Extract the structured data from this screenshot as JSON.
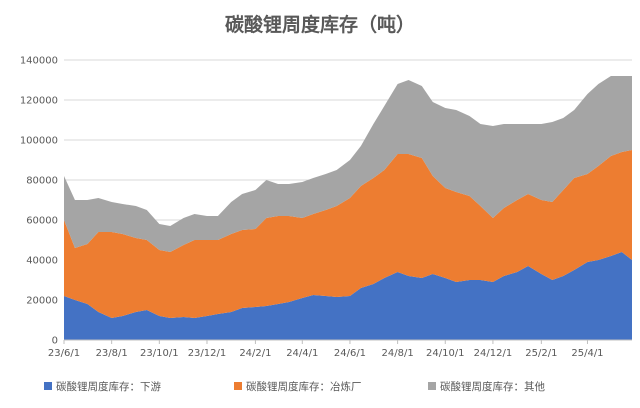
{
  "chart_data": {
    "type": "area",
    "stacked": true,
    "title": "碳酸锂周度库存（吨）",
    "xlabel": "",
    "ylabel": "",
    "ylim": [
      0,
      140000
    ],
    "yticks": [
      0,
      20000,
      40000,
      60000,
      80000,
      100000,
      120000,
      140000
    ],
    "ytick_labels": [
      "0",
      "20000",
      "40000",
      "60000",
      "80000",
      "100000",
      "120000",
      "140000"
    ],
    "xlim": [
      "2023-06-01",
      "2025-05-28"
    ],
    "xticks": [
      "2023-06-01",
      "2023-08-01",
      "2023-10-01",
      "2023-12-01",
      "2024-02-01",
      "2024-04-01",
      "2024-06-01",
      "2024-08-01",
      "2024-10-01",
      "2024-12-01",
      "2025-02-01",
      "2025-04-01"
    ],
    "xtick_labels": [
      "23/6/1",
      "23/8/1",
      "23/10/1",
      "23/12/1",
      "24/2/1",
      "24/4/1",
      "24/6/1",
      "24/8/1",
      "24/10/1",
      "24/12/1",
      "25/2/1",
      "25/4/1"
    ],
    "grid": true,
    "legend_position": "bottom",
    "x": [
      "2023-06-01",
      "2023-06-15",
      "2023-07-01",
      "2023-07-15",
      "2023-08-01",
      "2023-08-15",
      "2023-09-01",
      "2023-09-15",
      "2023-10-01",
      "2023-10-15",
      "2023-11-01",
      "2023-11-15",
      "2023-12-01",
      "2023-12-15",
      "2024-01-01",
      "2024-01-15",
      "2024-02-01",
      "2024-02-15",
      "2024-03-01",
      "2024-03-15",
      "2024-04-01",
      "2024-04-15",
      "2024-05-01",
      "2024-05-15",
      "2024-06-01",
      "2024-06-15",
      "2024-07-01",
      "2024-07-15",
      "2024-08-01",
      "2024-08-15",
      "2024-09-01",
      "2024-09-15",
      "2024-10-01",
      "2024-10-15",
      "2024-11-01",
      "2024-11-15",
      "2024-12-01",
      "2024-12-15",
      "2025-01-01",
      "2025-01-15",
      "2025-02-01",
      "2025-02-15",
      "2025-03-01",
      "2025-03-15",
      "2025-04-01",
      "2025-04-15",
      "2025-05-01",
      "2025-05-15",
      "2025-05-28"
    ],
    "series": [
      {
        "name": "碳酸锂周度库存：下游",
        "color": "#4472C4",
        "values": [
          22000,
          20000,
          18000,
          14000,
          11000,
          12000,
          14000,
          15000,
          12000,
          11000,
          11500,
          11000,
          12000,
          13000,
          14000,
          16000,
          16500,
          17000,
          18000,
          19000,
          21000,
          22500,
          22000,
          21500,
          22000,
          26000,
          28000,
          31000,
          34000,
          32000,
          31000,
          33000,
          31000,
          29000,
          30000,
          30000,
          29000,
          32000,
          34000,
          37000,
          33000,
          30000,
          32000,
          35000,
          39000,
          40000,
          42000,
          44000,
          40000
        ]
      },
      {
        "name": "碳酸锂周度库存：冶炼厂",
        "color": "#ED7D31",
        "values": [
          38000,
          26000,
          30000,
          40000,
          43000,
          41000,
          37000,
          35000,
          33000,
          33000,
          36000,
          39000,
          38000,
          37000,
          39000,
          39000,
          39000,
          44000,
          44000,
          43000,
          40000,
          40500,
          43000,
          45500,
          49000,
          51000,
          53000,
          54000,
          59000,
          61000,
          60000,
          49000,
          45000,
          45000,
          42000,
          37000,
          32000,
          34000,
          36000,
          36000,
          37000,
          39000,
          43000,
          46000,
          44000,
          47000,
          50000,
          50000,
          55000
        ]
      },
      {
        "name": "碳酸锂周度库存：其他",
        "color": "#A5A5A5",
        "values": [
          22000,
          24000,
          22000,
          17000,
          15000,
          15000,
          16000,
          15000,
          13000,
          13000,
          13500,
          13000,
          12000,
          12000,
          16000,
          18000,
          19500,
          19000,
          16000,
          16000,
          18000,
          18000,
          18000,
          18000,
          19000,
          20000,
          27000,
          32000,
          35000,
          37000,
          36000,
          37000,
          40000,
          41000,
          40000,
          41000,
          46000,
          42000,
          38000,
          35000,
          38000,
          40000,
          36000,
          34000,
          40000,
          41000,
          40000,
          38000,
          37000
        ]
      }
    ]
  }
}
